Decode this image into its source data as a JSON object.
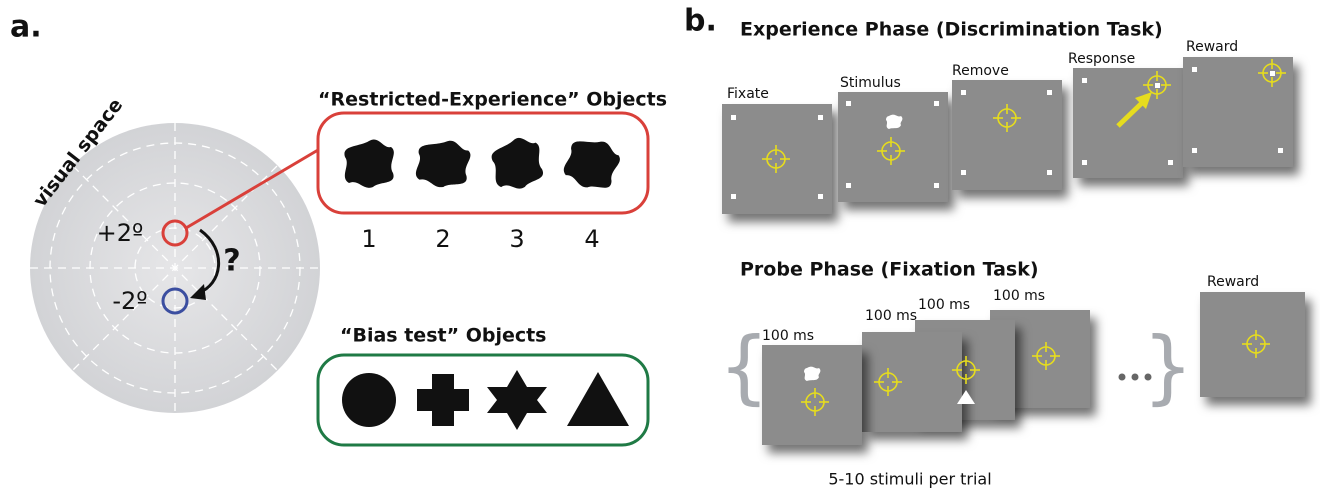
{
  "panel_a": {
    "label": "a.",
    "visual_space": "visual space",
    "plus": "+2º",
    "minus": "-2º",
    "question": "?",
    "restricted": {
      "title": "“Restricted-Experience” Objects",
      "numbers": [
        "1",
        "2",
        "3",
        "4"
      ]
    },
    "bias": {
      "title": "“Bias test” Objects"
    }
  },
  "panel_b": {
    "label": "b.",
    "experience": {
      "title": "Experience Phase (Discrimination Task)",
      "frames": [
        "Fixate",
        "Stimulus",
        "Remove",
        "Response",
        "Reward"
      ]
    },
    "probe": {
      "title": "Probe Phase (Fixation Task)",
      "durations": [
        "100 ms",
        "100 ms",
        "100 ms",
        "100 ms"
      ],
      "reward": "Reward",
      "footer": "5-10 stimuli per trial"
    }
  }
}
